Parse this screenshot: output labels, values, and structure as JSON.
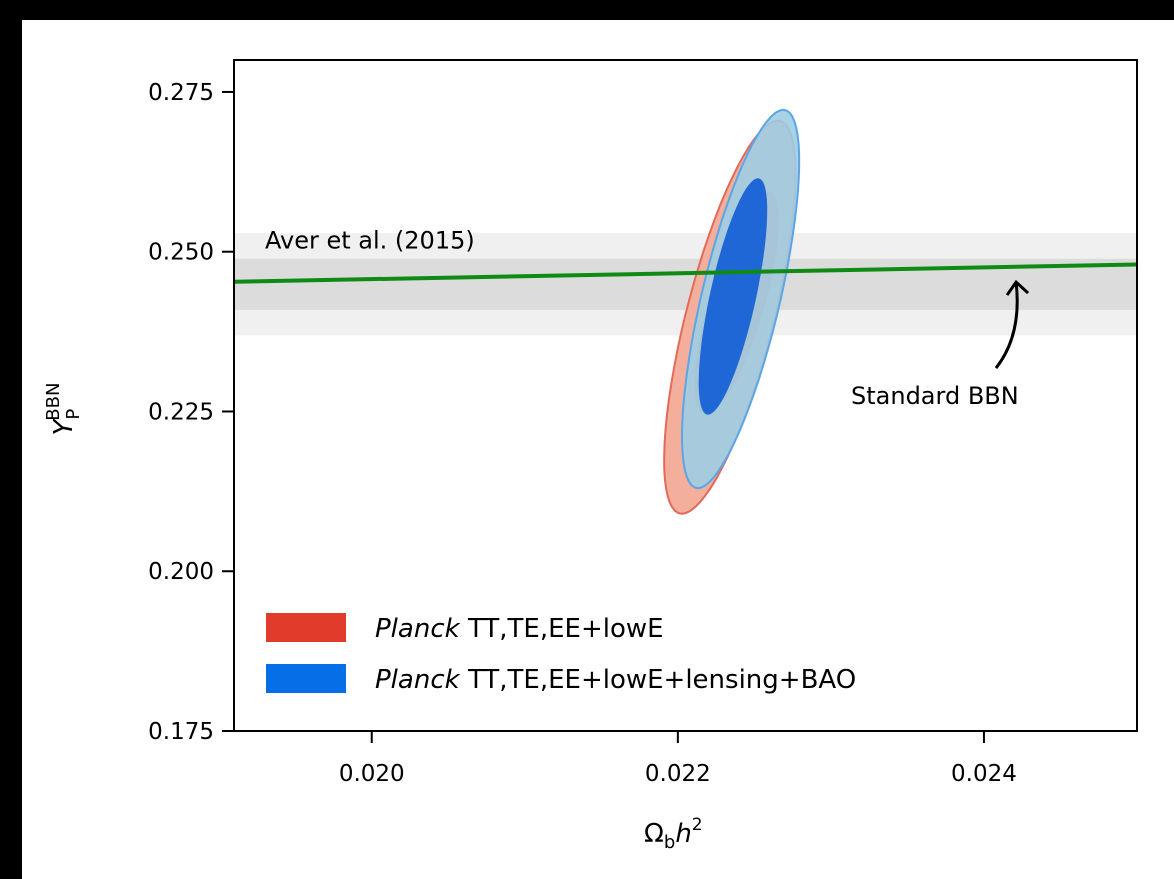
{
  "colors": {
    "background_outer": "#000000",
    "planck_red_outer": "#f4ae9c",
    "planck_red_inner": "#ea5a45",
    "planck_red_edge": "#e36a58",
    "planck_blue_outer": "#9fcde3",
    "planck_blue_inner": "#1f67d6",
    "planck_blue_edge": "#5aa6e6",
    "legend_red": "#e13b2b",
    "legend_blue": "#066ee6",
    "bbn_line": "#0f8a14",
    "band_outer": "#f0f0f0",
    "band_inner": "#dcdcdc"
  },
  "chart_data": {
    "type": "contour",
    "xlabel": "Ωbh2",
    "ylabel": "YPBBN",
    "xlim": [
      0.0191,
      0.025
    ],
    "ylim": [
      0.175,
      0.28
    ],
    "xticks": [
      "0.020",
      "0.022",
      "0.024"
    ],
    "xtick_values": [
      0.02,
      0.022,
      0.024
    ],
    "yticks": [
      "0.175",
      "0.200",
      "0.225",
      "0.250",
      "0.275"
    ],
    "ytick_values": [
      0.175,
      0.2,
      0.225,
      0.25,
      0.275
    ],
    "grid": false,
    "legend_position": "lower-left",
    "series": [
      {
        "name_italic": "Planck",
        "name_rest": "TT,TE,EE+lowE",
        "center": [
          0.02239,
          0.24
        ],
        "contours_68": {
          "x_range": [
            0.02209,
            0.02268
          ],
          "y_range": [
            0.2245,
            0.2595
          ]
        },
        "contours_95": {
          "x_range": [
            0.02188,
            0.0228
          ],
          "y_range": [
            0.209,
            0.2705
          ]
        }
      },
      {
        "name_italic": "Planck",
        "name_rest": "TT,TE,EE+lowE+lensing+BAO",
        "center": [
          0.02242,
          0.243
        ],
        "contours_68": {
          "x_range": [
            0.02212,
            0.0226
          ],
          "y_range": [
            0.2245,
            0.2615
          ]
        },
        "contours_95": {
          "x_range": [
            0.022,
            0.02282
          ],
          "y_range": [
            0.213,
            0.2722
          ]
        }
      }
    ],
    "standard_bbn_line": {
      "x": [
        0.0191,
        0.025
      ],
      "y": [
        0.2453,
        0.248
      ]
    },
    "aver_2015_band": {
      "center": 0.2449,
      "sigma1": [
        0.2409,
        0.2489
      ],
      "sigma2": [
        0.2369,
        0.2529
      ]
    },
    "annotations": {
      "aver_label": "Aver et al. (2015)",
      "bbn_label": "Standard BBN"
    }
  }
}
